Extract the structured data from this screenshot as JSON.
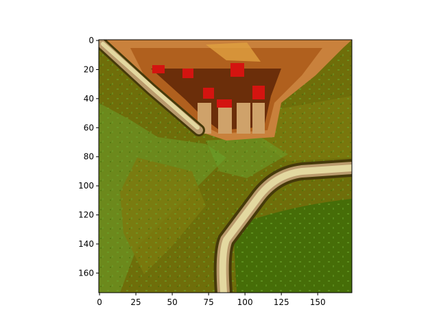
{
  "figure": {
    "description_free": true,
    "x_axis": {
      "ticks": [
        "0",
        "25",
        "50",
        "75",
        "100",
        "125",
        "150"
      ],
      "tick_values": [
        0,
        25,
        50,
        75,
        100,
        125,
        150
      ],
      "range": [
        -0.5,
        173.5
      ]
    },
    "y_axis": {
      "ticks": [
        "0",
        "20",
        "40",
        "60",
        "80",
        "100",
        "120",
        "140",
        "160"
      ],
      "tick_values": [
        0,
        20,
        40,
        60,
        80,
        100,
        120,
        140,
        160
      ],
      "range": [
        -0.5,
        173.5
      ],
      "inverted": true
    },
    "image_extent": [
      174,
      174
    ],
    "colors": {
      "grass_dark": "#6b6f08",
      "grass_olive": "#7d7a0e",
      "grass_light": "#6aa12c",
      "grass_deep": "#3f6d08",
      "road_light": "#e3d8a0",
      "road_edge": "#b99a6c",
      "road_dark": "#463a0a",
      "roof_orange": "#c9813c",
      "roof_dark": "#6b2e0a",
      "roof_red": "#d41410",
      "roof_tan": "#cfa26a"
    }
  }
}
